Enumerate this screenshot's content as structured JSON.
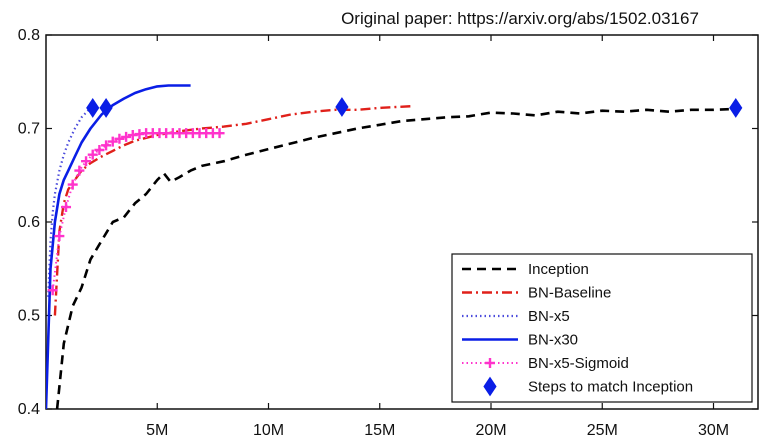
{
  "annotation": "Original paper: https://arxiv.org/abs/1502.03167",
  "chart_data": {
    "type": "line",
    "title": "",
    "xlabel": "",
    "ylabel": "",
    "xlim": [
      0,
      32000000
    ],
    "ylim": [
      0.4,
      0.8
    ],
    "x_ticks": [
      {
        "value": 5000000,
        "label": "5M"
      },
      {
        "value": 10000000,
        "label": "10M"
      },
      {
        "value": 15000000,
        "label": "15M"
      },
      {
        "value": 20000000,
        "label": "20M"
      },
      {
        "value": 25000000,
        "label": "25M"
      },
      {
        "value": 30000000,
        "label": "30M"
      }
    ],
    "y_ticks": [
      {
        "value": 0.4,
        "label": "0.4"
      },
      {
        "value": 0.5,
        "label": "0.5"
      },
      {
        "value": 0.6,
        "label": "0.6"
      },
      {
        "value": 0.7,
        "label": "0.7"
      },
      {
        "value": 0.8,
        "label": "0.8"
      }
    ],
    "grid": false,
    "legend_position": "bottom-right",
    "series": [
      {
        "name": "Inception",
        "color": "#000000",
        "style": "dashed",
        "x": [
          500000,
          800000,
          1200000,
          1600000,
          2000000,
          2500000,
          3000000,
          3500000,
          4000000,
          4500000,
          5000000,
          5300000,
          5600000,
          6000000,
          6500000,
          7000000,
          8000000,
          9000000,
          10000000,
          11000000,
          12000000,
          13000000,
          14000000,
          15000000,
          16000000,
          17000000,
          18000000,
          19000000,
          20000000,
          21000000,
          22000000,
          23000000,
          24000000,
          25000000,
          26000000,
          27000000,
          28000000,
          29000000,
          30000000,
          31000000
        ],
        "y": [
          0.4,
          0.47,
          0.51,
          0.53,
          0.56,
          0.58,
          0.6,
          0.605,
          0.62,
          0.63,
          0.645,
          0.652,
          0.643,
          0.648,
          0.655,
          0.66,
          0.665,
          0.672,
          0.678,
          0.684,
          0.69,
          0.695,
          0.7,
          0.704,
          0.708,
          0.71,
          0.712,
          0.713,
          0.717,
          0.716,
          0.714,
          0.718,
          0.716,
          0.719,
          0.718,
          0.72,
          0.718,
          0.72,
          0.72,
          0.721
        ]
      },
      {
        "name": "BN-Baseline",
        "color": "#e0201a",
        "style": "dashdot",
        "x": [
          400000,
          600000,
          800000,
          1000000,
          1300000,
          1600000,
          2000000,
          2500000,
          3000000,
          3500000,
          4000000,
          5000000,
          6000000,
          7000000,
          8000000,
          9000000,
          10000000,
          11000000,
          12000000,
          13000000,
          14000000,
          15000000,
          16500000
        ],
        "y": [
          0.5,
          0.59,
          0.62,
          0.635,
          0.645,
          0.655,
          0.663,
          0.67,
          0.676,
          0.682,
          0.687,
          0.693,
          0.697,
          0.7,
          0.702,
          0.705,
          0.71,
          0.715,
          0.718,
          0.72,
          0.72,
          0.722,
          0.724
        ]
      },
      {
        "name": "BN-x5",
        "color": "#4b4bdc",
        "style": "dotted",
        "x": [
          100000,
          200000,
          300000,
          400000,
          600000,
          800000,
          1000000,
          1300000,
          1600000,
          2000000
        ],
        "y": [
          0.52,
          0.58,
          0.61,
          0.63,
          0.655,
          0.672,
          0.685,
          0.7,
          0.712,
          0.722
        ]
      },
      {
        "name": "BN-x30",
        "color": "#0a1ee6",
        "style": "solid",
        "x": [
          0,
          200000,
          400000,
          600000,
          800000,
          1000000,
          1300000,
          1600000,
          2000000,
          2500000,
          3000000,
          3500000,
          4000000,
          4500000,
          5000000,
          5500000,
          6000000,
          6500000
        ],
        "y": [
          0.4,
          0.55,
          0.6,
          0.63,
          0.645,
          0.655,
          0.67,
          0.685,
          0.7,
          0.715,
          0.725,
          0.732,
          0.738,
          0.742,
          0.745,
          0.746,
          0.746,
          0.746
        ]
      },
      {
        "name": "BN-x5-Sigmoid",
        "color": "#ff33cc",
        "style": "dotted-plus",
        "x": [
          300000,
          600000,
          900000,
          1200000,
          1500000,
          1800000,
          2100000,
          2400000,
          2700000,
          3000000,
          3300000,
          3600000,
          3900000,
          4200000,
          4500000,
          4800000,
          5100000,
          5400000,
          5700000,
          6000000,
          6300000,
          6600000,
          6900000,
          7200000,
          7500000,
          7800000
        ],
        "y": [
          0.527,
          0.585,
          0.616,
          0.64,
          0.655,
          0.665,
          0.672,
          0.677,
          0.682,
          0.686,
          0.689,
          0.691,
          0.693,
          0.694,
          0.695,
          0.695,
          0.695,
          0.695,
          0.695,
          0.695,
          0.695,
          0.695,
          0.695,
          0.695,
          0.695,
          0.695
        ]
      },
      {
        "name": "Steps to match Inception",
        "color": "#0a1ee6",
        "style": "diamond-marker",
        "x": [
          2100000,
          2700000,
          13300000,
          31000000
        ],
        "y": [
          0.722,
          0.722,
          0.723,
          0.722
        ]
      }
    ]
  }
}
